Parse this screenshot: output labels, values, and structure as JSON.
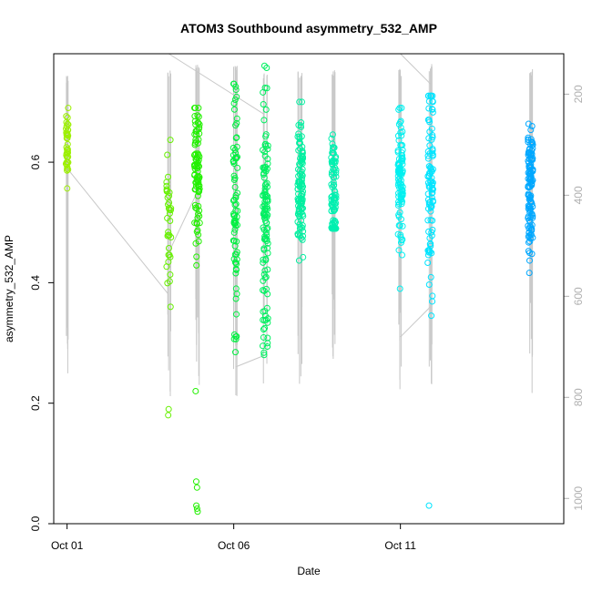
{
  "chart_data": {
    "type": "scatter",
    "title": "ATOM3 Southbound asymmetry_532_AMP",
    "xlabel": "Date",
    "ylabel": "asymmetry_532_AMP",
    "x_ticks": [
      "Oct 01",
      "Oct 06",
      "Oct 11"
    ],
    "x_tick_days": [
      1,
      6,
      11
    ],
    "xlim": [
      0.6,
      15.9
    ],
    "ylim": [
      0.0,
      0.78
    ],
    "y_ticks": [
      0.0,
      0.2,
      0.4,
      0.6
    ],
    "y_tick_labels": [
      "0.0",
      "0.2",
      "0.4",
      "0.6"
    ],
    "right_axis": {
      "ticks": [
        200,
        400,
        600,
        800,
        1000
      ],
      "tick_labels": [
        "200",
        "400",
        "600",
        "800",
        "1000"
      ],
      "lim": [
        1050,
        120
      ],
      "color": "#b0b0b0"
    },
    "grid": false,
    "legend": "none",
    "color_scale": [
      "#a8f000",
      "#00ff00",
      "#00ffcc",
      "#00ccff",
      "#0088ff"
    ],
    "clusters": [
      {
        "day": 1.0,
        "spread": 0.04,
        "ymin": 0.51,
        "ymax": 0.69,
        "center": 0.62,
        "n": 40,
        "extra": [],
        "color": "#9cf000",
        "pmin": 160,
        "pmax": 820
      },
      {
        "day": 4.05,
        "spread": 0.08,
        "ymin": 0.36,
        "ymax": 0.65,
        "center": 0.5,
        "n": 35,
        "extra": [
          0.18,
          0.19
        ],
        "color": "#66f000",
        "pmin": 150,
        "pmax": 820
      },
      {
        "day": 4.9,
        "spread": 0.09,
        "ymin": 0.36,
        "ymax": 0.69,
        "center": 0.58,
        "n": 90,
        "extra": [
          0.22,
          0.07,
          0.06,
          0.03,
          0.025,
          0.02
        ],
        "color": "#22f000",
        "pmin": 140,
        "pmax": 780
      },
      {
        "day": 6.05,
        "spread": 0.07,
        "ymin": 0.22,
        "ymax": 0.73,
        "center": 0.52,
        "n": 80,
        "extra": [],
        "color": "#00f040",
        "pmin": 140,
        "pmax": 800
      },
      {
        "day": 6.95,
        "spread": 0.09,
        "ymin": 0.28,
        "ymax": 0.76,
        "center": 0.5,
        "n": 120,
        "extra": [],
        "color": "#00f060",
        "pmin": 150,
        "pmax": 790
      },
      {
        "day": 8.0,
        "spread": 0.09,
        "ymin": 0.42,
        "ymax": 0.7,
        "center": 0.56,
        "n": 110,
        "extra": [],
        "color": "#00f0a0",
        "pmin": 150,
        "pmax": 820
      },
      {
        "day": 9.0,
        "spread": 0.08,
        "ymin": 0.49,
        "ymax": 0.74,
        "center": 0.55,
        "n": 90,
        "extra": [],
        "color": "#00f0b0",
        "pmin": 150,
        "pmax": 790
      },
      {
        "day": 11.0,
        "spread": 0.08,
        "ymin": 0.39,
        "ymax": 0.69,
        "center": 0.58,
        "n": 100,
        "extra": [],
        "color": "#00f0f0",
        "pmin": 150,
        "pmax": 810
      },
      {
        "day": 11.9,
        "spread": 0.09,
        "ymin": 0.23,
        "ymax": 0.71,
        "center": 0.56,
        "n": 100,
        "extra": [
          0.03
        ],
        "color": "#00e4ff",
        "pmin": 140,
        "pmax": 800
      },
      {
        "day": 14.9,
        "spread": 0.08,
        "ymin": 0.41,
        "ymax": 0.7,
        "center": 0.56,
        "n": 130,
        "extra": [],
        "color": "#00a8ff",
        "pmin": 150,
        "pmax": 800
      }
    ]
  }
}
